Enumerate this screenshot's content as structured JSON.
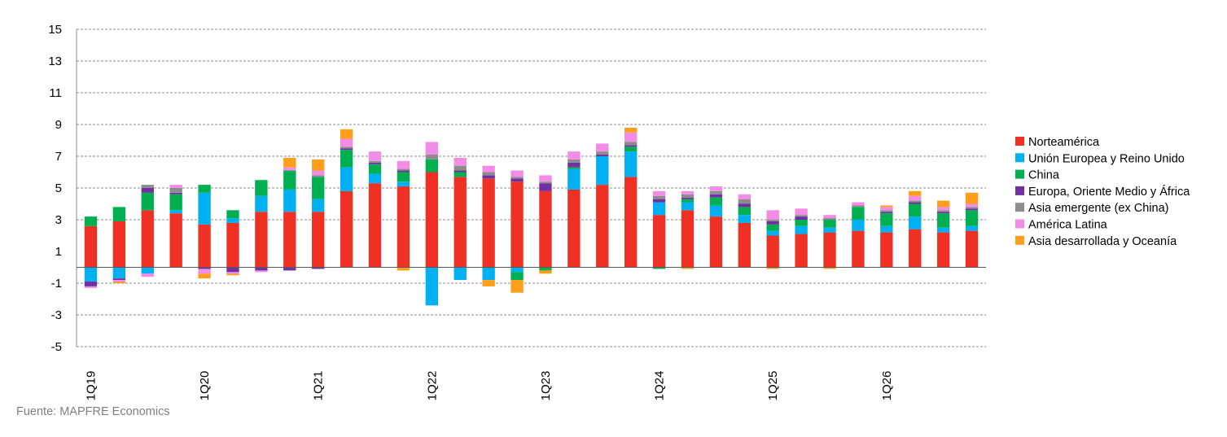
{
  "source_note": "Fuente: MAPFRE Economics",
  "colors": {
    "norteamerica": "#EE3124",
    "ue_reino_unido": "#00B0F0",
    "china": "#00B050",
    "emea": "#7030A0",
    "asia_emergente": "#8C8C8C",
    "america_latina": "#F28CE6",
    "asia_desarrollada": "#FF9E1B",
    "gridline": "#8C8C8C",
    "axis": "#8C8C8C"
  },
  "chart_data": {
    "type": "bar",
    "stacked": true,
    "title": "",
    "xlabel": "",
    "ylabel": "",
    "ylim": [
      -5,
      15
    ],
    "yticks": [
      15,
      13,
      11,
      9,
      7,
      5,
      3,
      1,
      -1,
      -3,
      -5
    ],
    "grid": true,
    "legend_position": "right",
    "categories": [
      "1Q19",
      "2Q19",
      "3Q19",
      "4Q19",
      "1Q20",
      "2Q20",
      "3Q20",
      "4Q20",
      "1Q21",
      "2Q21",
      "3Q21",
      "4Q21",
      "1Q22",
      "2Q22",
      "3Q22",
      "4Q22",
      "1Q23",
      "2Q23",
      "3Q23",
      "4Q23",
      "1Q24",
      "2Q24",
      "3Q24",
      "4Q24",
      "1Q25",
      "2Q25",
      "3Q25",
      "4Q25",
      "1Q26",
      "2Q26",
      "3Q26",
      "4Q26"
    ],
    "x_tick_labels": [
      "1Q19",
      "1Q20",
      "1Q21",
      "1Q22",
      "1Q23",
      "1Q24",
      "1Q25",
      "1Q26"
    ],
    "series": [
      {
        "name": "Norteamérica",
        "color_key": "norteamerica",
        "values": [
          2.6,
          2.9,
          3.6,
          3.4,
          2.7,
          2.8,
          3.5,
          3.5,
          3.5,
          4.8,
          5.3,
          5.1,
          6.0,
          5.7,
          5.6,
          5.4,
          4.8,
          4.9,
          5.2,
          5.7,
          3.3,
          3.6,
          3.2,
          2.8,
          2.0,
          2.1,
          2.2,
          2.3,
          2.2,
          2.4,
          2.2,
          2.3
        ]
      },
      {
        "name": "Unión Europea y Reino Unido",
        "color_key": "ue_reino_unido",
        "values": [
          -0.9,
          -0.7,
          -0.4,
          0.2,
          2.0,
          0.3,
          1.0,
          1.4,
          0.8,
          1.5,
          0.6,
          0.3,
          -2.4,
          -0.8,
          -0.8,
          -0.3,
          0.0,
          1.3,
          1.8,
          1.6,
          0.8,
          0.5,
          0.7,
          0.5,
          0.3,
          0.5,
          0.3,
          0.7,
          0.4,
          0.8,
          0.3,
          0.3
        ]
      },
      {
        "name": "China",
        "color_key": "china",
        "values": [
          0.6,
          0.9,
          1.1,
          1.0,
          0.5,
          0.5,
          1.0,
          1.2,
          1.4,
          1.1,
          0.6,
          0.6,
          0.8,
          0.3,
          0.0,
          -0.5,
          -0.2,
          0.1,
          0.0,
          0.3,
          -0.1,
          0.2,
          0.5,
          0.5,
          0.4,
          0.4,
          0.5,
          0.8,
          0.8,
          0.8,
          0.9,
          1.0
        ]
      },
      {
        "name": "Europa, Oriente Medio y África",
        "color_key": "emea",
        "values": [
          -0.3,
          -0.1,
          0.3,
          0.1,
          -0.1,
          -0.3,
          -0.2,
          -0.2,
          -0.1,
          0.1,
          0.1,
          0.1,
          0.0,
          0.1,
          0.2,
          0.2,
          0.5,
          0.3,
          0.1,
          0.1,
          0.2,
          0.1,
          0.2,
          0.2,
          0.2,
          0.2,
          0.0,
          0.0,
          0.1,
          0.1,
          0.1,
          0.1
        ]
      },
      {
        "name": "Asia emergente (ex China)",
        "color_key": "asia_emergente",
        "values": [
          0.0,
          0.0,
          0.2,
          0.3,
          0.0,
          0.0,
          0.0,
          0.0,
          0.1,
          0.1,
          0.1,
          0.1,
          0.3,
          0.3,
          0.2,
          0.1,
          0.1,
          0.2,
          0.2,
          0.2,
          0.2,
          0.2,
          0.2,
          0.3,
          0.1,
          0.1,
          0.1,
          0.1,
          0.1,
          0.1,
          0.1,
          0.1
        ]
      },
      {
        "name": "América Latina",
        "color_key": "america_latina",
        "values": [
          -0.1,
          -0.1,
          -0.2,
          0.2,
          -0.3,
          -0.1,
          -0.1,
          0.2,
          0.3,
          0.5,
          0.6,
          0.5,
          0.8,
          0.5,
          0.4,
          0.4,
          0.4,
          0.5,
          0.5,
          0.6,
          0.3,
          0.2,
          0.3,
          0.3,
          0.6,
          0.4,
          0.2,
          0.2,
          0.2,
          0.3,
          0.2,
          0.2
        ]
      },
      {
        "name": "Asia desarrollada y Oceanía",
        "color_key": "asia_desarrollada",
        "values": [
          0.0,
          -0.1,
          0.0,
          0.0,
          -0.3,
          -0.1,
          0.0,
          0.6,
          0.7,
          0.6,
          0.0,
          -0.2,
          0.0,
          0.0,
          -0.4,
          -0.8,
          -0.2,
          0.0,
          0.0,
          0.3,
          0.0,
          -0.1,
          0.0,
          0.0,
          -0.1,
          0.0,
          -0.1,
          0.0,
          0.1,
          0.3,
          0.4,
          0.7
        ]
      }
    ]
  }
}
